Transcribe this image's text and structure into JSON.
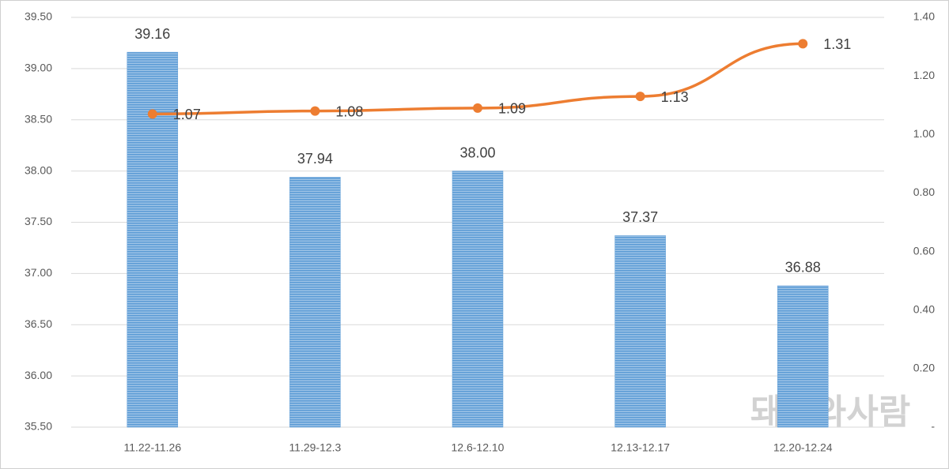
{
  "chart_data": {
    "type": "bar-line",
    "categories": [
      "11.22-11.26",
      "11.29-12.3",
      "12.6-12.10",
      "12.13-12.17",
      "12.20-12.24"
    ],
    "series": [
      {
        "type": "bar",
        "color": "#5b9bd5",
        "values": [
          39.16,
          37.94,
          38.0,
          37.37,
          36.88
        ],
        "value_labels": [
          "39.16",
          "37.94",
          "38.00",
          "37.37",
          "36.88"
        ]
      },
      {
        "type": "line",
        "color": "#ed7d31",
        "axis": "y2",
        "values": [
          1.07,
          1.08,
          1.09,
          1.13,
          1.31
        ]
      }
    ],
    "ylim": [
      35.5,
      39.5
    ],
    "yticks": [
      {
        "value": 35.5,
        "label": "35.50"
      },
      {
        "value": 36,
        "label": "36.00"
      },
      {
        "value": 36.5,
        "label": "36.50"
      },
      {
        "value": 37,
        "label": "37.00"
      },
      {
        "value": 37.5,
        "label": "37.50"
      },
      {
        "value": 38,
        "label": "38.00"
      },
      {
        "value": 38.5,
        "label": "38.50"
      },
      {
        "value": 39,
        "label": "39.00"
      },
      {
        "value": 39.5,
        "label": "39.50"
      }
    ],
    "y2lim": [
      0,
      1.4
    ],
    "y2ticks": [
      {
        "value": 0,
        "label": "-"
      },
      {
        "value": 0.2,
        "label": "0.20"
      },
      {
        "value": 0.4,
        "label": "0.40"
      },
      {
        "value": 0.6,
        "label": "0.60"
      },
      {
        "value": 0.8,
        "label": "0.80"
      },
      {
        "value": 1,
        "label": "1.00"
      },
      {
        "value": 1.2,
        "label": "1.20"
      },
      {
        "value": 1.4,
        "label": "1.40"
      }
    ],
    "grid": true,
    "watermark": "돼지와사람"
  }
}
